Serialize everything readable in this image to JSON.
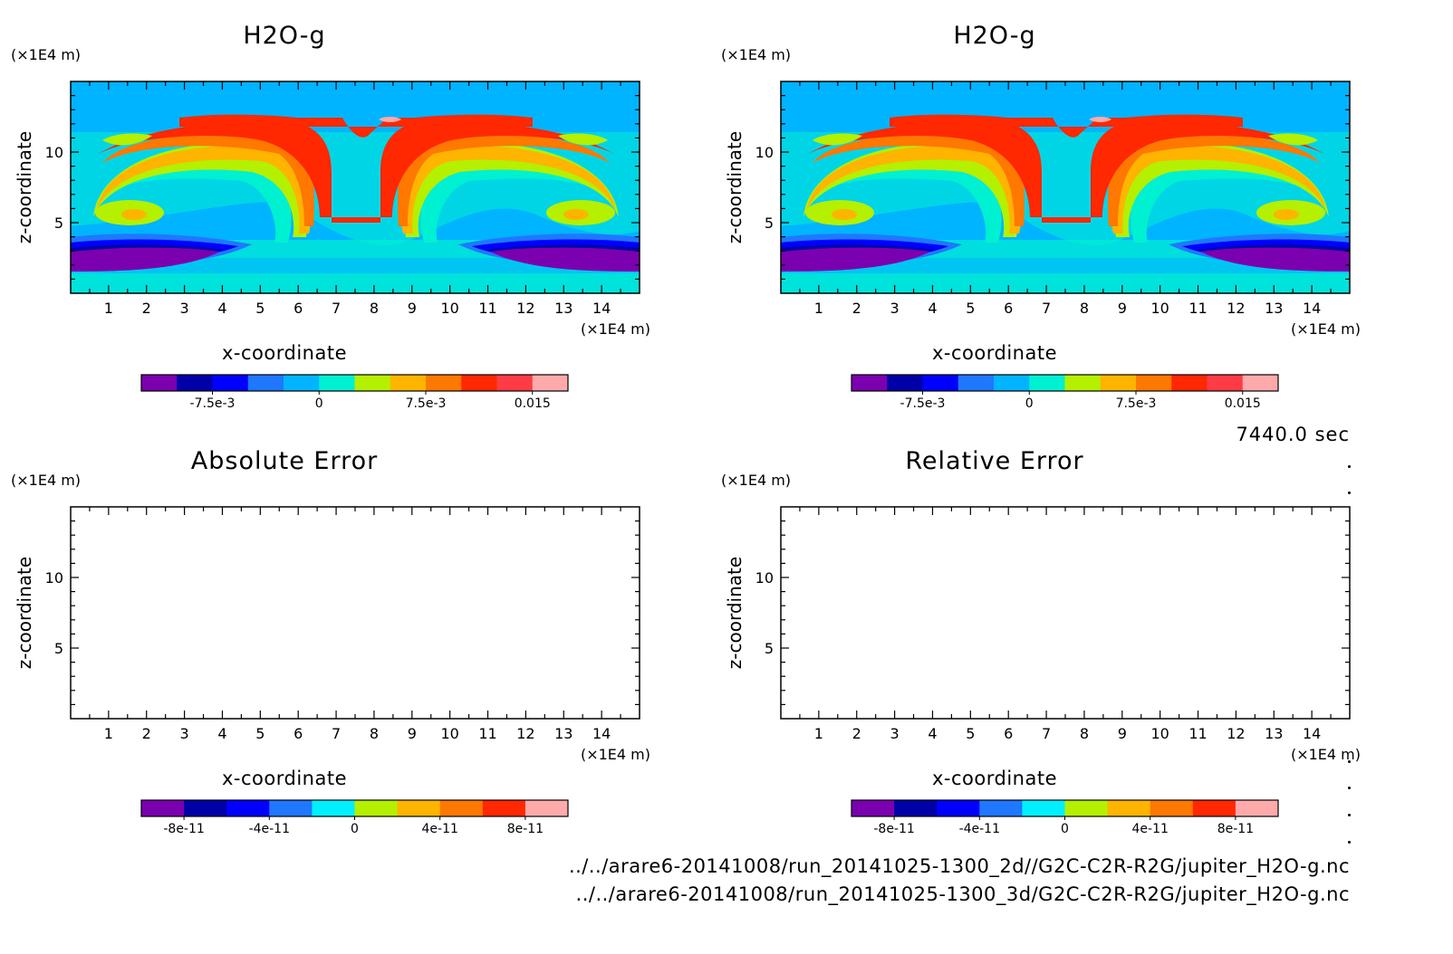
{
  "chart_data": [
    {
      "type": "heatmap",
      "title": "H2O-g",
      "xlabel": "x-coordinate",
      "ylabel": "z-coordinate",
      "x_unit": "(×1E4 m)",
      "y_unit": "(×1E4 m)",
      "xlim": [
        0,
        15
      ],
      "ylim": [
        0,
        15
      ],
      "xticks": [
        "1",
        "2",
        "3",
        "4",
        "5",
        "6",
        "7",
        "8",
        "9",
        "10",
        "11",
        "12",
        "13",
        "14"
      ],
      "yticks": [
        "5",
        "10"
      ],
      "colorbar": {
        "colors": [
          "#7b00b0",
          "#0000a8",
          "#0000ff",
          "#1f78ff",
          "#00b4ff",
          "#00f0d2",
          "#b4f000",
          "#ffb400",
          "#ff7800",
          "#ff2800",
          "#ff3c46",
          "#ffaaaa"
        ],
        "ticks": [
          "-7.5e-3",
          "0",
          "7.5e-3",
          "0.015"
        ]
      }
    },
    {
      "type": "heatmap",
      "title": "H2O-g",
      "xlabel": "x-coordinate",
      "ylabel": "z-coordinate",
      "x_unit": "(×1E4 m)",
      "y_unit": "(×1E4 m)",
      "xlim": [
        0,
        15
      ],
      "ylim": [
        0,
        15
      ],
      "xticks": [
        "1",
        "2",
        "3",
        "4",
        "5",
        "6",
        "7",
        "8",
        "9",
        "10",
        "11",
        "12",
        "13",
        "14"
      ],
      "yticks": [
        "5",
        "10"
      ],
      "colorbar": {
        "colors": [
          "#7b00b0",
          "#0000a8",
          "#0000ff",
          "#1f78ff",
          "#00b4ff",
          "#00f0d2",
          "#b4f000",
          "#ffb400",
          "#ff7800",
          "#ff2800",
          "#ff3c46",
          "#ffaaaa"
        ],
        "ticks": [
          "-7.5e-3",
          "0",
          "7.5e-3",
          "0.015"
        ]
      }
    },
    {
      "type": "heatmap",
      "title": "Absolute Error",
      "xlabel": "x-coordinate",
      "ylabel": "z-coordinate",
      "x_unit": "(×1E4 m)",
      "y_unit": "(×1E4 m)",
      "xlim": [
        0,
        15
      ],
      "ylim": [
        0,
        15
      ],
      "xticks": [
        "1",
        "2",
        "3",
        "4",
        "5",
        "6",
        "7",
        "8",
        "9",
        "10",
        "11",
        "12",
        "13",
        "14"
      ],
      "yticks": [
        "5",
        "10"
      ],
      "colorbar": {
        "colors": [
          "#7b00b0",
          "#0000a8",
          "#0000ff",
          "#1f78ff",
          "#00f0ff",
          "#b4f000",
          "#ffb400",
          "#ff7800",
          "#ff2800",
          "#ffaaaa"
        ],
        "ticks": [
          "-8e-11",
          "-4e-11",
          "0",
          "4e-11",
          "8e-11"
        ]
      }
    },
    {
      "type": "heatmap",
      "title": "Relative Error",
      "xlabel": "x-coordinate",
      "ylabel": "z-coordinate",
      "x_unit": "(×1E4 m)",
      "y_unit": "(×1E4 m)",
      "xlim": [
        0,
        15
      ],
      "ylim": [
        0,
        15
      ],
      "xticks": [
        "1",
        "2",
        "3",
        "4",
        "5",
        "6",
        "7",
        "8",
        "9",
        "10",
        "11",
        "12",
        "13",
        "14"
      ],
      "yticks": [
        "5",
        "10"
      ],
      "colorbar": {
        "colors": [
          "#7b00b0",
          "#0000a8",
          "#0000ff",
          "#1f78ff",
          "#00f0ff",
          "#b4f000",
          "#ffb400",
          "#ff7800",
          "#ff2800",
          "#ffaaaa"
        ],
        "ticks": [
          "-8e-11",
          "-4e-11",
          "0",
          "4e-11",
          "8e-11"
        ]
      }
    }
  ],
  "time_label": "7440.0 sec",
  "file_paths": [
    "../../arare6-20141008/run_20141025-1300_2d//G2C-C2R-R2G/jupiter_H2O-g.nc",
    "../../arare6-20141008/run_20141025-1300_3d/G2C-C2R-R2G/jupiter_H2O-g.nc"
  ]
}
